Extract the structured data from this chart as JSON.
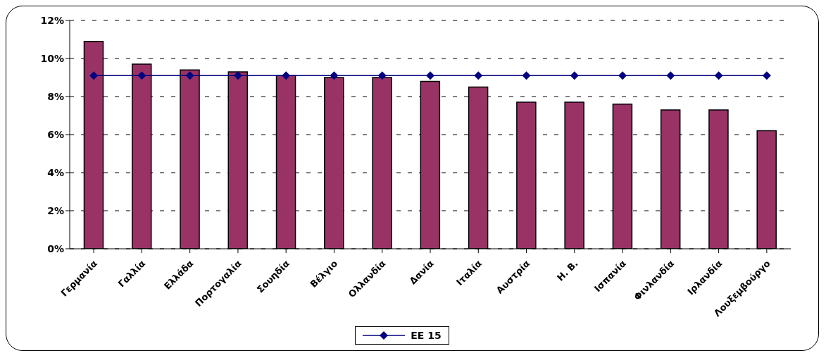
{
  "chart_data": {
    "type": "bar",
    "categories": [
      "Γερμανία",
      "Γαλλία",
      "Ελλάδα",
      "Πορτογαλία",
      "Σουηδία",
      "Βέλγιο",
      "Ολλανδία",
      "Δανία",
      "Ιταλία",
      "Αυστρία",
      "Η. Β.",
      "Ισπανία",
      "Φινλανδία",
      "Ιρλανδία",
      "Λουξεμβούργο"
    ],
    "series": [
      {
        "color": "#993366",
        "values": [
          10.9,
          9.7,
          9.4,
          9.3,
          9.1,
          9.0,
          9.0,
          8.8,
          8.5,
          7.7,
          7.7,
          7.6,
          7.3,
          7.3,
          6.2
        ]
      },
      {
        "type": "line",
        "name": "EE 15",
        "color": "#000080",
        "values": [
          9.1,
          9.1,
          9.1,
          9.1,
          9.1,
          9.1,
          9.1,
          9.1,
          9.1,
          9.1,
          9.1,
          9.1,
          9.1,
          9.1,
          9.1
        ]
      }
    ],
    "ylim": [
      0,
      12
    ],
    "yticks": [
      {
        "value": 0,
        "label": "0%"
      },
      {
        "value": 2,
        "label": "2%"
      },
      {
        "value": 4,
        "label": "4%"
      },
      {
        "value": 6,
        "label": "6%"
      },
      {
        "value": 8,
        "label": "8%"
      },
      {
        "value": 10,
        "label": "10%"
      },
      {
        "value": 12,
        "label": "12%"
      }
    ],
    "grid": "y",
    "legend": "bottom",
    "marker": "diamond",
    "line_style": "solid"
  }
}
